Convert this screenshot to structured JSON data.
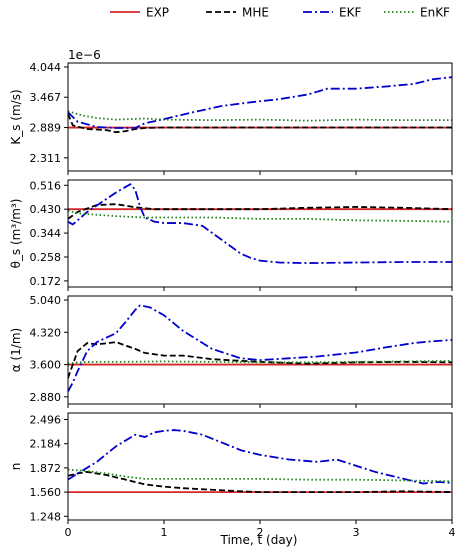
{
  "legend": [
    {
      "label": "EXP",
      "color": "#d62728",
      "dash": "solid"
    },
    {
      "label": "MHE",
      "color": "#000000",
      "dash": "dashed"
    },
    {
      "label": "EKF",
      "color": "#0000cc",
      "dash": "dashdot"
    },
    {
      "label": "EnKF",
      "color": "#1a7f1a",
      "dash": "dotted"
    }
  ],
  "xlabel": "Time, t (day)",
  "chart_data": [
    {
      "type": "line",
      "ylabel": "K_s (m/s)",
      "scale_note": "1e−6",
      "xlim": [
        0,
        4
      ],
      "ylim": [
        2.06,
        4.12
      ],
      "xticks": [
        0,
        1,
        2,
        3,
        4
      ],
      "yticks": [
        2.311,
        2.889,
        3.467,
        4.044
      ],
      "series": [
        {
          "name": "EXP",
          "x": [
            0,
            4
          ],
          "y": [
            2.889,
            2.889
          ]
        },
        {
          "name": "MHE",
          "x": [
            0,
            0.05,
            0.2,
            0.4,
            0.5,
            0.6,
            0.7,
            0.8,
            1.0,
            1.5,
            2.0,
            2.5,
            3.0,
            3.5,
            4.0
          ],
          "y": [
            3.15,
            2.93,
            2.86,
            2.84,
            2.8,
            2.82,
            2.86,
            2.88,
            2.89,
            2.89,
            2.89,
            2.89,
            2.89,
            2.89,
            2.89
          ]
        },
        {
          "name": "EKF",
          "x": [
            0,
            0.1,
            0.3,
            0.5,
            0.7,
            0.8,
            1.0,
            1.3,
            1.6,
            1.9,
            2.2,
            2.5,
            2.7,
            3.0,
            3.3,
            3.6,
            3.8,
            4.0
          ],
          "y": [
            3.18,
            3.0,
            2.9,
            2.88,
            2.88,
            2.97,
            3.05,
            3.18,
            3.3,
            3.37,
            3.43,
            3.52,
            3.63,
            3.63,
            3.67,
            3.72,
            3.81,
            3.85
          ]
        },
        {
          "name": "EnKF",
          "x": [
            0,
            0.15,
            0.3,
            0.5,
            0.8,
            1.0,
            1.5,
            2.0,
            2.5,
            3.0,
            3.5,
            4.0
          ],
          "y": [
            3.2,
            3.12,
            3.07,
            3.04,
            3.06,
            3.04,
            3.03,
            3.04,
            3.02,
            3.04,
            3.03,
            3.03
          ]
        }
      ]
    },
    {
      "type": "line",
      "ylabel": "θ_s (m³/m³)",
      "xlim": [
        0,
        4
      ],
      "ylim": [
        0.15,
        0.535
      ],
      "xticks": [
        0,
        1,
        2,
        3,
        4
      ],
      "yticks": [
        0.172,
        0.258,
        0.344,
        0.43,
        0.516
      ],
      "series": [
        {
          "name": "EXP",
          "x": [
            0,
            4
          ],
          "y": [
            0.43,
            0.43
          ]
        },
        {
          "name": "MHE",
          "x": [
            0,
            0.1,
            0.3,
            0.5,
            0.7,
            0.9,
            1.2,
            1.5,
            2.0,
            2.5,
            3.0,
            3.5,
            4.0
          ],
          "y": [
            0.395,
            0.42,
            0.445,
            0.448,
            0.437,
            0.43,
            0.43,
            0.43,
            0.43,
            0.435,
            0.438,
            0.435,
            0.43
          ]
        },
        {
          "name": "EKF",
          "x": [
            0,
            0.05,
            0.1,
            0.2,
            0.35,
            0.5,
            0.6,
            0.65,
            0.7,
            0.75,
            0.8,
            0.9,
            1.0,
            1.2,
            1.4,
            1.6,
            1.8,
            1.9,
            2.0,
            2.2,
            2.5,
            3.0,
            3.5,
            4.0
          ],
          "y": [
            0.385,
            0.375,
            0.39,
            0.42,
            0.455,
            0.49,
            0.51,
            0.52,
            0.5,
            0.44,
            0.4,
            0.385,
            0.38,
            0.38,
            0.37,
            0.32,
            0.27,
            0.255,
            0.245,
            0.238,
            0.236,
            0.238,
            0.24,
            0.24
          ]
        },
        {
          "name": "EnKF",
          "x": [
            0,
            0.1,
            0.3,
            0.5,
            0.8,
            1.0,
            1.5,
            2.0,
            2.5,
            3.0,
            3.5,
            4.0
          ],
          "y": [
            0.425,
            0.415,
            0.41,
            0.405,
            0.4,
            0.4,
            0.4,
            0.395,
            0.395,
            0.39,
            0.388,
            0.385
          ]
        }
      ]
    },
    {
      "type": "line",
      "ylabel": "α (1/m)",
      "xlim": [
        0,
        4
      ],
      "ylim": [
        2.72,
        5.13
      ],
      "xticks": [
        0,
        1,
        2,
        3,
        4
      ],
      "yticks": [
        2.88,
        3.6,
        4.32,
        5.04
      ],
      "series": [
        {
          "name": "EXP",
          "x": [
            0,
            4
          ],
          "y": [
            3.6,
            3.6
          ]
        },
        {
          "name": "MHE",
          "x": [
            0,
            0.1,
            0.2,
            0.3,
            0.5,
            0.7,
            0.8,
            1.0,
            1.2,
            1.5,
            2.0,
            2.5,
            3.0,
            3.5,
            4.0
          ],
          "y": [
            3.3,
            3.9,
            4.08,
            4.05,
            4.1,
            3.95,
            3.86,
            3.8,
            3.8,
            3.72,
            3.66,
            3.62,
            3.65,
            3.66,
            3.65
          ]
        },
        {
          "name": "EKF",
          "x": [
            0,
            0.05,
            0.1,
            0.2,
            0.3,
            0.5,
            0.6,
            0.7,
            0.75,
            0.85,
            1.0,
            1.2,
            1.5,
            1.8,
            2.0,
            2.3,
            2.6,
            3.0,
            3.3,
            3.6,
            3.8,
            4.0
          ],
          "y": [
            3.0,
            3.2,
            3.45,
            3.9,
            4.1,
            4.3,
            4.55,
            4.82,
            4.92,
            4.88,
            4.7,
            4.35,
            3.95,
            3.74,
            3.7,
            3.74,
            3.78,
            3.87,
            3.98,
            4.08,
            4.12,
            4.15
          ]
        },
        {
          "name": "EnKF",
          "x": [
            0,
            0.1,
            0.3,
            0.5,
            1.0,
            1.5,
            2.0,
            2.5,
            3.0,
            3.5,
            4.0
          ],
          "y": [
            3.62,
            3.65,
            3.66,
            3.66,
            3.67,
            3.66,
            3.65,
            3.65,
            3.66,
            3.67,
            3.68
          ]
        }
      ]
    },
    {
      "type": "line",
      "ylabel": "n",
      "xlim": [
        0,
        4
      ],
      "ylim": [
        1.2,
        2.58
      ],
      "xticks": [
        0,
        1,
        2,
        3,
        4
      ],
      "yticks": [
        1.248,
        1.56,
        1.872,
        2.184,
        2.496
      ],
      "series": [
        {
          "name": "EXP",
          "x": [
            0,
            4
          ],
          "y": [
            1.56,
            1.56
          ]
        },
        {
          "name": "MHE",
          "x": [
            0,
            0.1,
            0.2,
            0.4,
            0.6,
            0.8,
            1.0,
            1.2,
            1.5,
            1.8,
            2.0,
            2.5,
            3.0,
            3.5,
            4.0
          ],
          "y": [
            1.77,
            1.8,
            1.82,
            1.78,
            1.72,
            1.66,
            1.63,
            1.61,
            1.59,
            1.57,
            1.56,
            1.56,
            1.56,
            1.57,
            1.56
          ]
        },
        {
          "name": "EKF",
          "x": [
            0,
            0.1,
            0.3,
            0.5,
            0.7,
            0.8,
            0.9,
            1.0,
            1.1,
            1.2,
            1.4,
            1.6,
            1.8,
            2.0,
            2.3,
            2.6,
            2.8,
            3.0,
            3.2,
            3.5,
            3.7,
            3.85,
            4.0
          ],
          "y": [
            1.72,
            1.8,
            1.95,
            2.15,
            2.3,
            2.27,
            2.33,
            2.35,
            2.36,
            2.35,
            2.3,
            2.2,
            2.1,
            2.04,
            1.98,
            1.95,
            1.98,
            1.9,
            1.82,
            1.73,
            1.67,
            1.69,
            1.68
          ]
        },
        {
          "name": "EnKF",
          "x": [
            0,
            0.1,
            0.2,
            0.4,
            0.6,
            0.8,
            1.0,
            1.5,
            2.0,
            2.5,
            3.0,
            3.5,
            4.0
          ],
          "y": [
            1.85,
            1.84,
            1.83,
            1.8,
            1.76,
            1.73,
            1.73,
            1.73,
            1.73,
            1.72,
            1.72,
            1.71,
            1.7
          ]
        }
      ]
    }
  ]
}
